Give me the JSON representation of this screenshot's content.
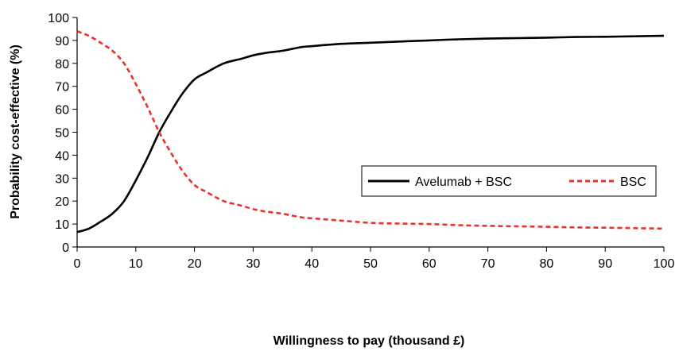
{
  "chart_data": {
    "type": "line",
    "xlabel": "Willingness to pay (thousand £)",
    "ylabel": "Probability cost-effective (%)",
    "xlim": [
      0,
      100
    ],
    "ylim": [
      0,
      100
    ],
    "xticks": [
      "0",
      "10",
      "20",
      "30",
      "40",
      "50",
      "60",
      "70",
      "80",
      "90",
      "100"
    ],
    "yticks": [
      "0",
      "10",
      "20",
      "30",
      "40",
      "50",
      "60",
      "70",
      "80",
      "90",
      "100"
    ],
    "grid": false,
    "legend_position": "right-center",
    "series": [
      {
        "name": "Avelumab + BSC",
        "color": "#000000",
        "style": "solid",
        "x": [
          0,
          2,
          4,
          6,
          8,
          10,
          12,
          14,
          16,
          18,
          20,
          22,
          25,
          28,
          30,
          32,
          35,
          38,
          40,
          45,
          50,
          55,
          60,
          65,
          70,
          75,
          80,
          85,
          90,
          95,
          100
        ],
        "y": [
          6.5,
          8,
          11,
          14.5,
          20,
          29,
          39,
          50,
          59,
          67,
          73,
          76,
          80,
          82,
          83.5,
          84.5,
          85.5,
          87,
          87.5,
          88.5,
          89,
          89.5,
          90,
          90.5,
          90.8,
          91,
          91.2,
          91.5,
          91.6,
          91.8,
          92
        ]
      },
      {
        "name": "BSC",
        "color": "#e8322b",
        "style": "dashed",
        "x": [
          0,
          2,
          4,
          6,
          8,
          10,
          12,
          14,
          16,
          18,
          20,
          22,
          25,
          28,
          30,
          32,
          35,
          38,
          40,
          45,
          50,
          55,
          60,
          65,
          70,
          75,
          80,
          85,
          90,
          95,
          100
        ],
        "y": [
          94,
          92,
          89,
          85.5,
          80,
          71,
          61,
          50,
          41,
          33,
          27,
          24,
          20,
          18,
          16.5,
          15.5,
          14.5,
          13,
          12.5,
          11.5,
          10.5,
          10.2,
          10,
          9.5,
          9.2,
          9,
          8.8,
          8.5,
          8.4,
          8.2,
          8
        ]
      }
    ]
  }
}
